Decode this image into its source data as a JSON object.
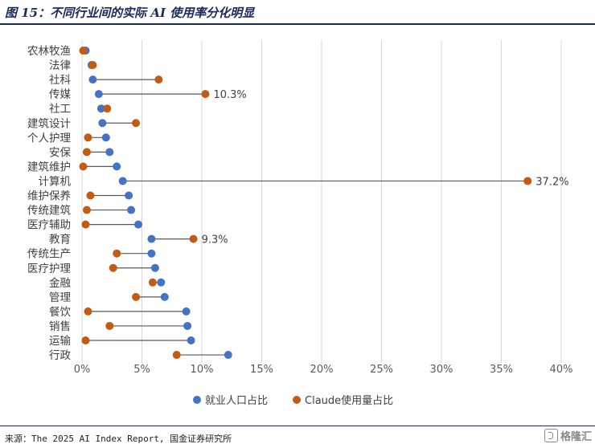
{
  "figure": {
    "title": "图 15：不同行业间的实际 AI 使用率分化明显",
    "source": "来源：The 2025 AI Index Report, 国金证券研究所",
    "watermark": "格隆汇"
  },
  "colors": {
    "employment": "#4472c4",
    "claude": "#c55a11",
    "connector": "#595959",
    "grid": "#d9d9d9",
    "title": "#1a2a5a"
  },
  "chart_data": {
    "type": "scatter",
    "subtype": "dumbbell",
    "title": "",
    "xlabel": "",
    "ylabel": "",
    "xlim": [
      0,
      40
    ],
    "x_ticks": [
      "0%",
      "5%",
      "10%",
      "15%",
      "20%",
      "25%",
      "30%",
      "35%",
      "40%"
    ],
    "grid": "vertical",
    "legend_position": "bottom",
    "categories": [
      "农林牧渔",
      "法律",
      "社科",
      "传媒",
      "社工",
      "建筑设计",
      "个人护理",
      "安保",
      "建筑维护",
      "计算机",
      "维护保养",
      "传统建筑",
      "医疗辅助",
      "教育",
      "传统生产",
      "医疗护理",
      "金融",
      "管理",
      "餐饮",
      "销售",
      "运输",
      "行政"
    ],
    "series": [
      {
        "name": "就业人口占比",
        "values": [
          0.3,
          0.8,
          0.9,
          1.4,
          1.6,
          1.7,
          2.0,
          2.3,
          2.9,
          3.4,
          3.9,
          4.1,
          4.7,
          5.8,
          5.8,
          6.1,
          6.6,
          6.9,
          8.7,
          8.8,
          9.1,
          12.2
        ]
      },
      {
        "name": "Claude使用量占比",
        "values": [
          0.1,
          0.9,
          6.4,
          10.3,
          2.1,
          4.5,
          0.5,
          0.4,
          0.1,
          37.2,
          0.7,
          0.4,
          0.3,
          9.3,
          2.9,
          2.6,
          5.9,
          4.5,
          0.5,
          2.3,
          0.3,
          7.9
        ]
      }
    ],
    "data_labels": [
      {
        "category": "传媒",
        "text": "10.3%"
      },
      {
        "category": "计算机",
        "text": "37.2%"
      },
      {
        "category": "教育",
        "text": "9.3%"
      }
    ]
  }
}
